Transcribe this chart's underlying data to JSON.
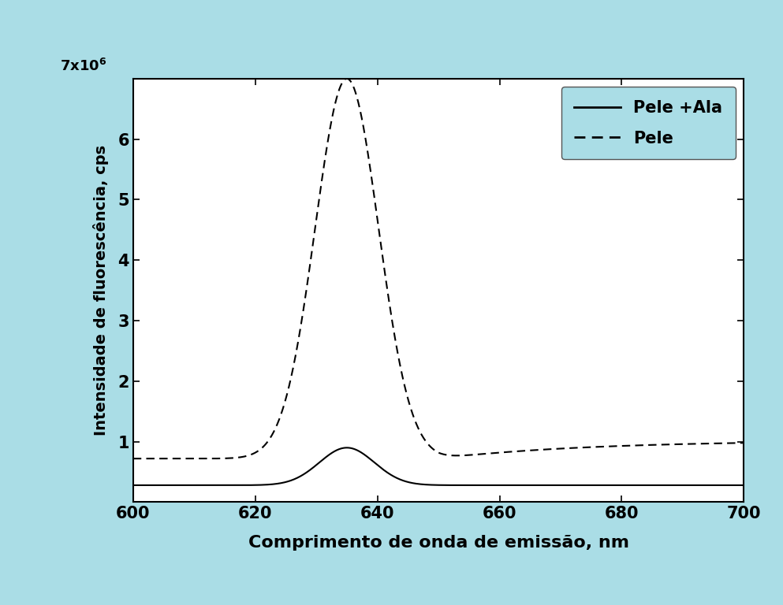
{
  "background_color": "#aadde6",
  "plot_bg_color": "#ffffff",
  "legend_bg_color": "#aadde6",
  "xlabel": "Comprimento de onda de emissão, nm",
  "ylabel": "Intensidade de fluorescência, cps",
  "xmin": 600,
  "xmax": 700,
  "ymin": 0,
  "ymax": 7000000.0,
  "xticks": [
    600,
    620,
    640,
    660,
    680,
    700
  ],
  "yticks": [
    1000000.0,
    2000000.0,
    3000000.0,
    4000000.0,
    5000000.0,
    6000000.0
  ],
  "ytick_labels": [
    "1",
    "2",
    "3",
    "4",
    "5",
    "6"
  ],
  "legend_entries": [
    "Pele +Ala",
    "Pele"
  ],
  "line_color": "#000000",
  "xlabel_fontsize": 16,
  "ylabel_fontsize": 14,
  "tick_fontsize": 15
}
